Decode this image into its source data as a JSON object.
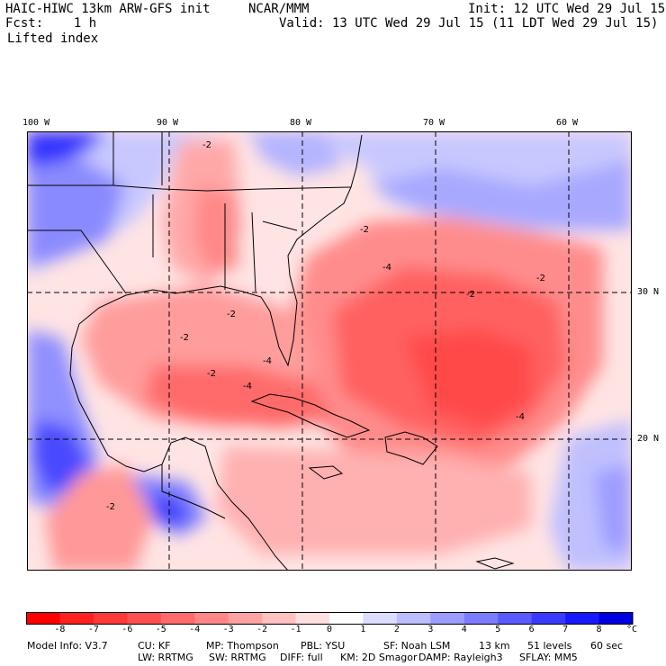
{
  "header": {
    "model": "HAIC-HIWC 13km ARW-GFS init",
    "org": "NCAR/MMM",
    "init": "Init: 12 UTC Wed 29 Jul 15",
    "fcst": "Fcst:    1 h",
    "valid": "Valid: 13 UTC Wed 29 Jul 15 (11 LDT Wed 29 Jul 15)",
    "field": "Lifted index"
  },
  "map": {
    "lon_labels": [
      "100 W",
      "90 W",
      "80 W",
      "70 W",
      "60 W"
    ],
    "lat_labels": [
      "30 N",
      "20 N"
    ],
    "contour_labels": [
      "-2",
      "-4"
    ]
  },
  "colorbar": {
    "ticks": [
      "-8",
      "-7",
      "-6",
      "-5",
      "-4",
      "-3",
      "-2",
      "-1",
      "0",
      "1",
      "2",
      "3",
      "4",
      "5",
      "6",
      "7",
      "8"
    ],
    "unit": "°C",
    "colors": [
      "#ff0000",
      "#ff2020",
      "#ff3838",
      "#ff5050",
      "#ff6a6a",
      "#ff8686",
      "#ffa2a2",
      "#ffc0c0",
      "#ffe0e0",
      "#ffffff",
      "#dcdcff",
      "#bcbcff",
      "#9c9cff",
      "#7c7cff",
      "#5a5aff",
      "#3a3aff",
      "#1818ff",
      "#0000e0"
    ]
  },
  "model_info": {
    "line1": [
      "Model Info: V3.7",
      "CU: KF",
      "MP: Thompson",
      "PBL: YSU",
      "SF: Noah LSM",
      "13 km",
      "51 levels",
      "60 sec"
    ],
    "line2": [
      "LW: RRTMG",
      "SW: RRTMG",
      "DIFF: full",
      "KM: 2D Smagor",
      "DAMP: Rayleigh3",
      "SFLAY: MM5"
    ]
  }
}
